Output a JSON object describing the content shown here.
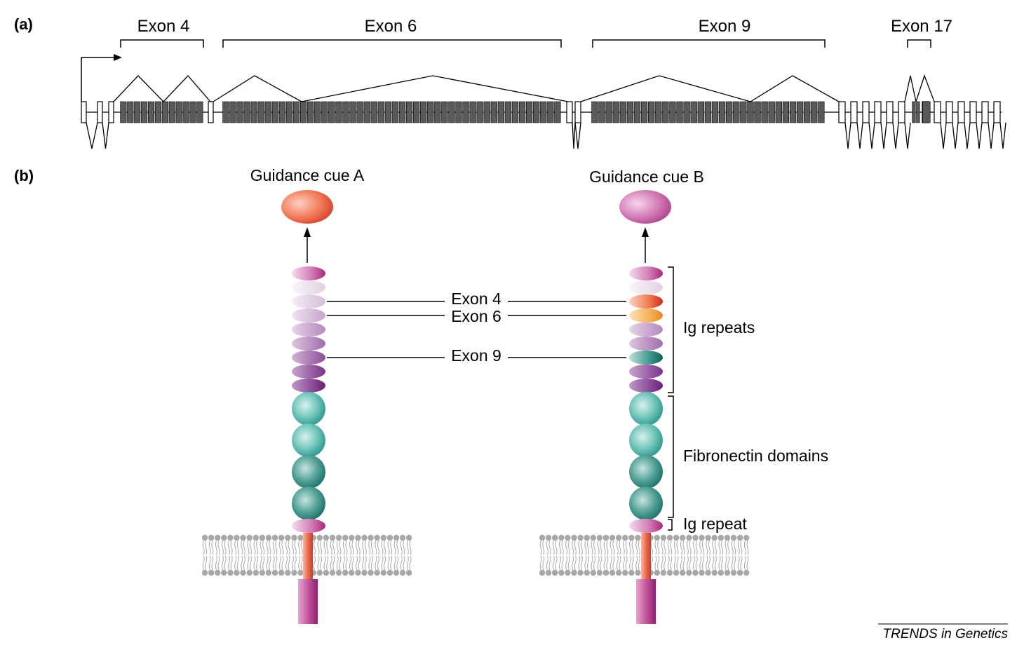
{
  "panel_a": {
    "label": "(a)",
    "exon_brackets": [
      {
        "label": "Exon 4"
      },
      {
        "label": "Exon 6"
      },
      {
        "label": "Exon 9"
      },
      {
        "label": "Exon 17"
      }
    ]
  },
  "panel_b": {
    "label": "(b)",
    "cue_a": {
      "label": "Guidance cue A",
      "color": "#ef6a4c"
    },
    "cue_b": {
      "label": "Guidance cue B",
      "color": "#c8559e"
    },
    "exon_labels": [
      "Exon 4",
      "Exon 6",
      "Exon 9"
    ],
    "domains": {
      "ig_repeats": "Ig repeats",
      "fibronectin": "Fibronectin domains",
      "ig_repeat": "Ig repeat"
    }
  },
  "credit": "TRENDS in Genetics",
  "colors": {
    "exon_dark": "#5a5a5a",
    "ig_purple": "#b07ab8",
    "ig_magenta": "#c34f9e",
    "fibronectin_teal": "#2fa396",
    "fibronectin_dark": "#1f7d73",
    "membrane_grey": "#a8a8a8",
    "tm_red": "#e8664e",
    "cyto_magenta": "#b8408e"
  }
}
